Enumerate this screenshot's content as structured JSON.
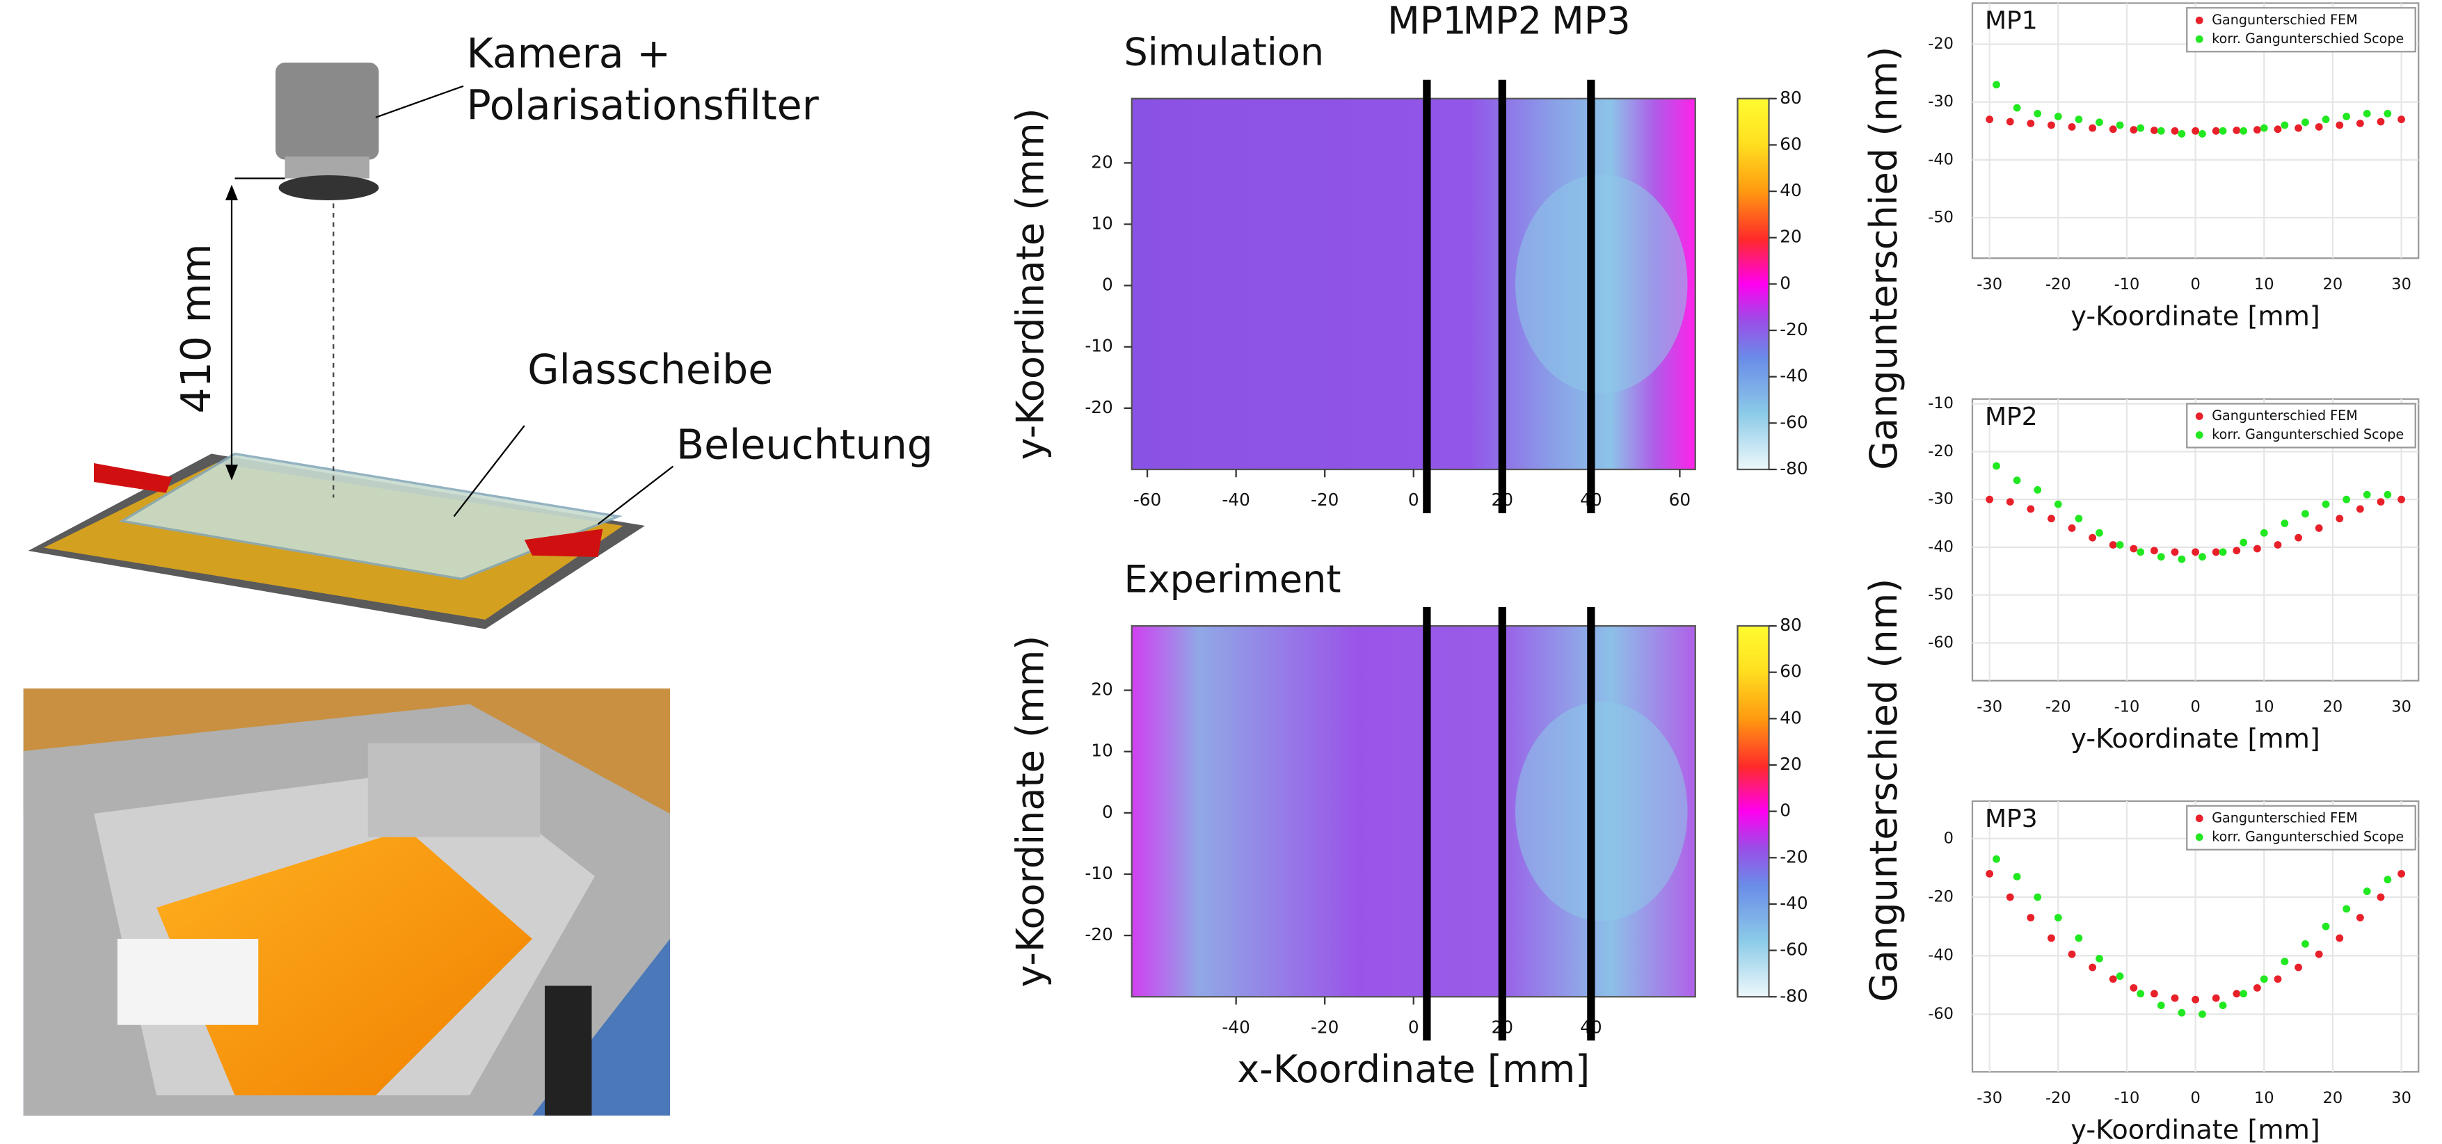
{
  "diagram": {
    "camera_label": [
      "Kamera +",
      "Polarisationsfilter"
    ],
    "distance_label": "410 mm",
    "glass_label": "Glasscheibe",
    "light_label": "Beleuchtung"
  },
  "chart_data": [
    {
      "type": "heatmap",
      "title": "Simulation",
      "ylabel": "y-Koordinate (mm)",
      "xlim": [
        -63.5,
        63.5
      ],
      "xticks": [
        -60,
        -40,
        -20,
        0,
        20,
        40,
        60
      ],
      "ylim": [
        -30,
        30.5
      ],
      "yticks": [
        -20,
        -10,
        0,
        10,
        20
      ],
      "clim": [
        -80,
        80
      ],
      "cticks": [
        -80,
        -60,
        -40,
        -20,
        0,
        20,
        40,
        60,
        80
      ],
      "markers": [
        {
          "name": "MP1",
          "x": 3
        },
        {
          "name": "MP2",
          "x": 20
        },
        {
          "name": "MP3",
          "x": 40
        }
      ]
    },
    {
      "type": "heatmap",
      "title": "Experiment",
      "ylabel": "y-Koordinate (mm)",
      "xlabel": "x-Koordinate [mm]",
      "xlim": [
        -63.5,
        63.5
      ],
      "xticks": [
        -40,
        -20,
        0,
        20,
        40
      ],
      "ylim": [
        -30,
        30.5
      ],
      "yticks": [
        -20,
        -10,
        0,
        10,
        20
      ],
      "clim": [
        -80,
        80
      ],
      "cticks": [
        -80,
        -60,
        -40,
        -20,
        0,
        20,
        40,
        60,
        80
      ],
      "markers": [
        {
          "x": 3
        },
        {
          "x": 20
        },
        {
          "x": 40
        }
      ]
    },
    {
      "type": "scatter",
      "title": "MP1",
      "ylabel": "Gangunterschied (nm)",
      "xlabel": "y-Koordinate [mm]",
      "xlim": [
        -32.5,
        32.5
      ],
      "xticks": [
        -30,
        -20,
        -10,
        0,
        10,
        20,
        30
      ],
      "ylim": [
        -57,
        -12.9
      ],
      "yticks": [
        -50,
        -40,
        -30,
        -20
      ],
      "grid": true,
      "legend": "upper right",
      "series": [
        {
          "name": "Gangunterschied FEM",
          "color": "#e8202a",
          "x": [
            -30,
            -27,
            -24,
            -21,
            -18,
            -15,
            -12,
            -9,
            -6,
            -3,
            0,
            3,
            6,
            9,
            12,
            15,
            18,
            21,
            24,
            27,
            30
          ],
          "values": [
            -33,
            -33.4,
            -33.7,
            -34,
            -34.3,
            -34.5,
            -34.7,
            -34.8,
            -34.9,
            -35,
            -35,
            -35,
            -34.9,
            -34.8,
            -34.7,
            -34.5,
            -34.3,
            -34,
            -33.7,
            -33.4,
            -33
          ]
        },
        {
          "name": "korr. Gangunterschied Scope",
          "color": "#22e822",
          "x": [
            -29,
            -26,
            -23,
            -20,
            -17,
            -14,
            -11,
            -8,
            -5,
            -2,
            1,
            4,
            7,
            10,
            13,
            16,
            19,
            22,
            25,
            28
          ],
          "values": [
            -27,
            -31,
            -32,
            -32.5,
            -33,
            -33.5,
            -34,
            -34.5,
            -35,
            -35.5,
            -35.5,
            -35,
            -35,
            -34.5,
            -34,
            -33.5,
            -33,
            -32.5,
            -32,
            -32
          ]
        }
      ]
    },
    {
      "type": "scatter",
      "title": "MP2",
      "xlabel": "y-Koordinate [mm]",
      "xlim": [
        -32.5,
        32.5
      ],
      "xticks": [
        -30,
        -20,
        -10,
        0,
        10,
        20,
        30
      ],
      "ylim": [
        -67.9,
        -9
      ],
      "yticks": [
        -60,
        -50,
        -40,
        -30,
        -20,
        -10
      ],
      "grid": true,
      "legend": "upper right",
      "series": [
        {
          "name": "Gangunterschied FEM",
          "color": "#e8202a",
          "x": [
            -30,
            -27,
            -24,
            -21,
            -18,
            -15,
            -12,
            -9,
            -6,
            -3,
            0,
            3,
            6,
            9,
            12,
            15,
            18,
            21,
            24,
            27,
            30
          ],
          "values": [
            -30,
            -30.5,
            -32,
            -34,
            -36,
            -38,
            -39.5,
            -40.3,
            -40.7,
            -41,
            -41,
            -41,
            -40.7,
            -40.3,
            -39.5,
            -38,
            -36,
            -34,
            -32,
            -30.5,
            -30
          ]
        },
        {
          "name": "korr. Gangunterschied Scope",
          "color": "#22e822",
          "x": [
            -29,
            -26,
            -23,
            -20,
            -17,
            -14,
            -11,
            -8,
            -5,
            -2,
            1,
            4,
            7,
            10,
            13,
            16,
            19,
            22,
            25,
            28
          ],
          "values": [
            -23,
            -26,
            -28,
            -31,
            -34,
            -37,
            -39.5,
            -41,
            -42,
            -42.5,
            -42,
            -41,
            -39,
            -37,
            -35,
            -33,
            -31,
            -30,
            -29,
            -29
          ]
        }
      ]
    },
    {
      "type": "scatter",
      "title": "MP3",
      "ylabel": "Gangunterschied (nm)",
      "xlabel": "y-Koordinate [mm]",
      "xlim": [
        -32.5,
        32.5
      ],
      "xticks": [
        -30,
        -20,
        -10,
        0,
        10,
        20,
        30
      ],
      "ylim": [
        -79.7,
        12.8
      ],
      "yticks": [
        -60,
        -40,
        -20,
        0
      ],
      "grid": true,
      "legend": "upper right",
      "series": [
        {
          "name": "Gangunterschied FEM",
          "color": "#e8202a",
          "x": [
            -30,
            -27,
            -24,
            -21,
            -18,
            -15,
            -12,
            -9,
            -6,
            -3,
            0,
            3,
            6,
            9,
            12,
            15,
            18,
            21,
            24,
            27,
            30
          ],
          "values": [
            -12,
            -20,
            -27,
            -34,
            -39.5,
            -44,
            -48,
            -51,
            -53,
            -54.5,
            -55,
            -54.5,
            -53,
            -51,
            -48,
            -44,
            -39.5,
            -34,
            -27,
            -20,
            -12
          ]
        },
        {
          "name": "korr. Gangunterschied Scope",
          "color": "#22e822",
          "x": [
            -29,
            -26,
            -23,
            -20,
            -17,
            -14,
            -11,
            -8,
            -5,
            -2,
            1,
            4,
            7,
            10,
            13,
            16,
            19,
            22,
            25,
            28
          ],
          "values": [
            -7,
            -13,
            -20,
            -27,
            -34,
            -41,
            -47,
            -53,
            -57,
            -59.5,
            -60,
            -57,
            -53,
            -48,
            -42,
            -36,
            -30,
            -24,
            -18,
            -14
          ]
        }
      ]
    }
  ]
}
